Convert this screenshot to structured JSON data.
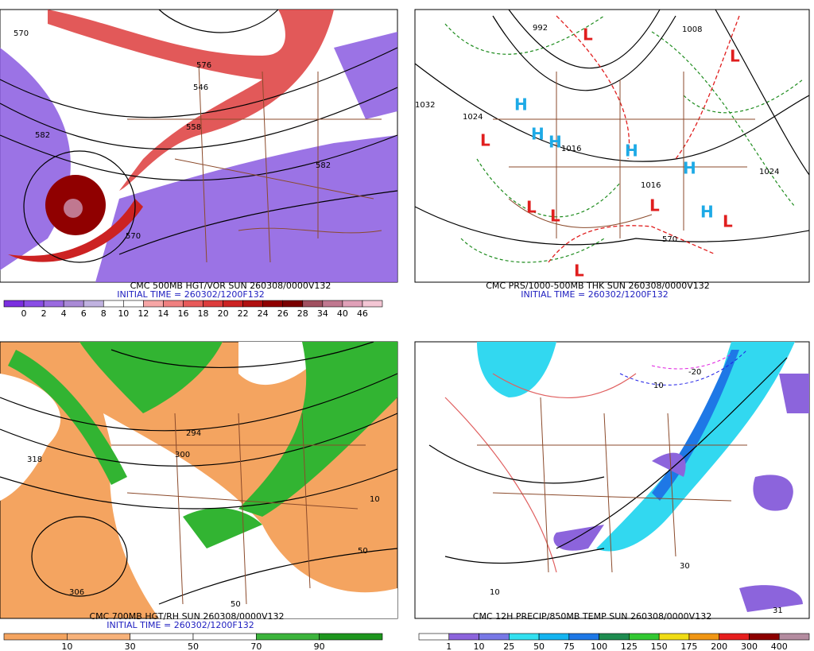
{
  "panels": [
    {
      "caption": "CMC 500MB HGT/VOR SUN 260308/0000V132",
      "initial_time": "INITIAL TIME = 260302/1200F132",
      "colorbar": {
        "labels": [
          "0",
          "2",
          "4",
          "6",
          "8",
          "10",
          "12",
          "14",
          "16",
          "18",
          "20",
          "22",
          "24",
          "26",
          "28",
          "34",
          "40",
          "46"
        ],
        "colors": [
          "#7b2fe0",
          "#8a4de6",
          "#9a6ae0",
          "#a98ad6",
          "#c0b2e0",
          "#ffffff",
          "#ffffff",
          "#f7a6a6",
          "#f08080",
          "#e85a5a",
          "#dd3c3c",
          "#cc2222",
          "#b01010",
          "#900000",
          "#7a0000",
          "#a05060",
          "#c07890",
          "#e0a0b8",
          "#f3c6d4"
        ]
      },
      "map_labels": [
        "570",
        "576",
        "546",
        "558",
        "582",
        "582",
        "570"
      ],
      "symbols": []
    },
    {
      "caption": "CMC PRS/1000-500MB THK SUN 260308/0000V132",
      "initial_time": "INITIAL TIME = 260302/1200F132",
      "colorbar": null,
      "map_labels": [
        "1032",
        "1024",
        "1016",
        "1008",
        "992",
        "1024",
        "570",
        "1016"
      ],
      "symbols": [
        "L",
        "L",
        "L",
        "L",
        "L",
        "L",
        "L",
        "L",
        "H",
        "H",
        "H",
        "H",
        "H",
        "H"
      ]
    },
    {
      "caption": "CMC 700MB HGT/RH SUN 260308/0000V132",
      "initial_time": "INITIAL TIME = 260302/1200F132",
      "colorbar": {
        "labels": [
          "10",
          "30",
          "50",
          "70",
          "90"
        ],
        "colors": [
          "#f4a460",
          "#f7b27a",
          "#ffffff",
          "#ffffff",
          "#3cb43c",
          "#1e961e"
        ]
      },
      "map_labels": [
        "318",
        "306",
        "300",
        "294",
        "10",
        "50",
        "50"
      ],
      "symbols": []
    },
    {
      "caption": "CMC 12H PRECIP/850MB TEMP SUN 260308/0000V132",
      "initial_time": null,
      "colorbar": {
        "labels": [
          "1",
          "10",
          "25",
          "50",
          "75",
          "100",
          "125",
          "150",
          "175",
          "200",
          "300",
          "400"
        ],
        "colors": [
          "#ffffff",
          "#8c64dc",
          "#7878e6",
          "#32e0f0",
          "#14b4f0",
          "#1e78e6",
          "#1e8c50",
          "#32c832",
          "#f0dc14",
          "#f09614",
          "#e61e1e",
          "#8c0000",
          "#b48ca0"
        ]
      },
      "map_labels": [
        "-20",
        "10",
        "30",
        "10",
        "31"
      ],
      "symbols": []
    }
  ]
}
